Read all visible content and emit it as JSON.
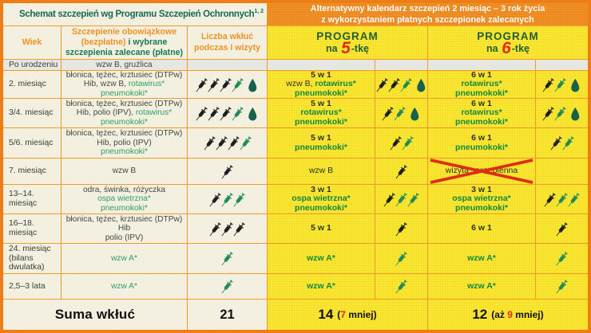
{
  "colors": {
    "outer_border": "#ee7d15",
    "grid_line": "#f09a28",
    "cream_bg": "#f4f1e2",
    "gray_band_bg": "#e7e7e1",
    "yellow_bg": "#f8ea30",
    "orange_band_bg": "#ef8c1f",
    "orange_header_text": "#ef9222",
    "green_accent_cream": "#2f9e63",
    "green_accent_yellow": "#0e8a3e",
    "title_green": "#176a50",
    "program_green": "#1d5f33",
    "red_accent": "#e02c12",
    "syringe_black": "#1d1d1d",
    "syringe_green": "#1f8a55",
    "drop_teal": "#16624d"
  },
  "header": {
    "title_left": "Schemat szczepień wg Programu Szczepień Ochronnych",
    "title_left_sup": "1, 2",
    "title_right_line1": "Alternatywny kalendarz szczepień 2 miesiąc – 3 rok życia",
    "title_right_line2": "z wykorzystaniem płatnych szczepionek zalecanych"
  },
  "columns": {
    "age": "Wiek",
    "mandatory_l1": "Szczepienie obowiązkowe",
    "mandatory_l2_orange": "(bezpłatne)",
    "mandatory_l2_green": " i wybrane",
    "mandatory_l3": "szczepienia zalecane (płatne)",
    "count_line1": "Liczba wkłuć",
    "count_line2": "podczas I wizyty",
    "program5": {
      "title": "PROGRAM",
      "prefix": "na",
      "digit": "5",
      "suffix": "-tkę"
    },
    "program6": {
      "title": "PROGRAM",
      "prefix": "na",
      "digit": "6",
      "suffix": "-tkę"
    }
  },
  "rows": [
    {
      "age": [
        "Po urodzeniu"
      ],
      "band": true,
      "vaccines": [
        [
          {
            "t": "wzw B, gruźlica"
          }
        ]
      ],
      "count": null,
      "p5": null,
      "p5_icons": null,
      "p6": null,
      "p6_icons": null
    },
    {
      "age": [
        "2. miesiąc"
      ],
      "vaccines": [
        [
          {
            "t": "błonica, tężec, krztusiec (DTPw)"
          }
        ],
        [
          {
            "t": "Hib, wzw B, "
          },
          {
            "t": "rotawirus*",
            "g": true
          }
        ],
        [
          {
            "t": "pneumokoki*",
            "g": true
          }
        ]
      ],
      "count": {
        "black": 3,
        "green": 1,
        "drop": true
      },
      "p5": [
        [
          {
            "t": "5 w 1",
            "b": true
          }
        ],
        [
          {
            "t": "wzw B, "
          },
          {
            "t": "rotawirus*",
            "g": true,
            "b": true
          }
        ],
        [
          {
            "t": "pneumokoki*",
            "g": true,
            "b": true
          }
        ]
      ],
      "p5_icons": {
        "black": 2,
        "green": 1,
        "drop": true
      },
      "p6": [
        [
          {
            "t": "6 w 1",
            "b": true
          }
        ],
        [
          {
            "t": "rotawirus*",
            "g": true,
            "b": true
          }
        ],
        [
          {
            "t": "pneumokoki*",
            "g": true,
            "b": true
          }
        ]
      ],
      "p6_icons": {
        "black": 1,
        "green": 1,
        "drop": true
      }
    },
    {
      "age": [
        "3/4. miesiąc"
      ],
      "vaccines": [
        [
          {
            "t": "błonica, tężec, krztusiec (DTPw)"
          }
        ],
        [
          {
            "t": "Hib, polio (IPV), "
          },
          {
            "t": "rotawirus*",
            "g": true
          }
        ],
        [
          {
            "t": "pneumokoki*",
            "g": true
          }
        ]
      ],
      "count": {
        "black": 3,
        "green": 1,
        "drop": true
      },
      "p5": [
        [
          {
            "t": "5 w 1",
            "b": true
          }
        ],
        [
          {
            "t": "rotawirus*",
            "g": true,
            "b": true
          }
        ],
        [
          {
            "t": "pneumokoki*",
            "g": true,
            "b": true
          }
        ]
      ],
      "p5_icons": {
        "black": 1,
        "green": 1,
        "drop": true
      },
      "p6": [
        [
          {
            "t": "6 w 1",
            "b": true
          }
        ],
        [
          {
            "t": "rotawirus*",
            "g": true,
            "b": true
          }
        ],
        [
          {
            "t": "pneumokoki*",
            "g": true,
            "b": true
          }
        ]
      ],
      "p6_icons": {
        "black": 1,
        "green": 1,
        "drop": true
      }
    },
    {
      "age": [
        "5/6. miesiąc"
      ],
      "vaccines": [
        [
          {
            "t": "błonica, tężec, krztusiec (DTPw)"
          }
        ],
        [
          {
            "t": "Hib, polio (IPV)"
          }
        ],
        [
          {
            "t": "pneumokoki*",
            "g": true
          }
        ]
      ],
      "count": {
        "black": 3,
        "green": 1,
        "drop": false
      },
      "p5": [
        [
          {
            "t": "5 w 1",
            "b": true
          }
        ],
        [
          {
            "t": "pneumokoki*",
            "g": true,
            "b": true
          }
        ]
      ],
      "p5_icons": {
        "black": 1,
        "green": 1,
        "drop": false
      },
      "p6": [
        [
          {
            "t": "6 w 1",
            "b": true
          }
        ],
        [
          {
            "t": "pneumokoki*",
            "g": true,
            "b": true
          }
        ]
      ],
      "p6_icons": {
        "black": 1,
        "green": 1,
        "drop": false
      }
    },
    {
      "age": [
        "7. miesiąc"
      ],
      "vaccines": [
        [
          {
            "t": "wzw B"
          }
        ]
      ],
      "count": {
        "black": 1,
        "green": 0,
        "drop": false
      },
      "p5": [
        [
          {
            "t": "wzw B"
          }
        ]
      ],
      "p5_icons": {
        "black": 1,
        "green": 0,
        "drop": false
      },
      "p6": [
        [
          {
            "t": "wizyta szczepienna"
          }
        ]
      ],
      "p6_crossed": true,
      "p6_icons": null
    },
    {
      "age": [
        "13–14.",
        "miesiąc"
      ],
      "vaccines": [
        [
          {
            "t": "odra, świnka, różyczka"
          }
        ],
        [
          {
            "t": "ospa wietrzna*",
            "g": true
          }
        ],
        [
          {
            "t": "pneumokoki*",
            "g": true
          }
        ]
      ],
      "count": {
        "black": 1,
        "green": 2,
        "drop": false
      },
      "p5": [
        [
          {
            "t": "3 w 1",
            "b": true
          }
        ],
        [
          {
            "t": "ospa wietrzna*",
            "g": true,
            "b": true
          }
        ],
        [
          {
            "t": "pneumokoki*",
            "g": true,
            "b": true
          }
        ]
      ],
      "p5_icons": {
        "black": 1,
        "green": 2,
        "drop": false
      },
      "p6": [
        [
          {
            "t": "3 w 1",
            "b": true
          }
        ],
        [
          {
            "t": "ospa wietrzna*",
            "g": true,
            "b": true
          }
        ],
        [
          {
            "t": "pneumokoki*",
            "g": true,
            "b": true
          }
        ]
      ],
      "p6_icons": {
        "black": 1,
        "green": 2,
        "drop": false
      }
    },
    {
      "age": [
        "16–18.",
        "miesiąc"
      ],
      "vaccines": [
        [
          {
            "t": "błonica, tężec, krztusiec (DTPw)"
          }
        ],
        [
          {
            "t": "Hib"
          }
        ],
        [
          {
            "t": "polio (IPV)"
          }
        ]
      ],
      "count": {
        "black": 3,
        "green": 0,
        "drop": false
      },
      "p5": [
        [
          {
            "t": "5 w 1",
            "b": true
          }
        ]
      ],
      "p5_icons": {
        "black": 1,
        "green": 0,
        "drop": false
      },
      "p6": [
        [
          {
            "t": "6 w 1",
            "b": true
          }
        ]
      ],
      "p6_icons": {
        "black": 1,
        "green": 0,
        "drop": false
      }
    },
    {
      "age": [
        "24. miesiąc",
        "(bilans",
        "dwulatka)"
      ],
      "vaccines": [
        [
          {
            "t": "wzw A*",
            "g": true
          }
        ]
      ],
      "count": {
        "black": 0,
        "green": 1,
        "drop": false
      },
      "p5": [
        [
          {
            "t": "wzw A*",
            "g": true,
            "b": true
          }
        ]
      ],
      "p5_icons": {
        "black": 0,
        "green": 1,
        "drop": false
      },
      "p6": [
        [
          {
            "t": "wzw A*",
            "g": true,
            "b": true
          }
        ]
      ],
      "p6_icons": {
        "black": 0,
        "green": 1,
        "drop": false
      }
    },
    {
      "age": [
        "2,5–3 lata"
      ],
      "vaccines": [
        [
          {
            "t": "wzw A*",
            "g": true
          }
        ]
      ],
      "count": {
        "black": 0,
        "green": 1,
        "drop": false
      },
      "p5": [
        [
          {
            "t": "wzw A*",
            "g": true,
            "b": true
          }
        ]
      ],
      "p5_icons": {
        "black": 0,
        "green": 1,
        "drop": false
      },
      "p6": [
        [
          {
            "t": "wzw A*",
            "g": true,
            "b": true
          }
        ]
      ],
      "p6_icons": {
        "black": 0,
        "green": 1,
        "drop": false
      }
    }
  ],
  "summary": {
    "label": "Suma wkłuć",
    "total_standard": "21",
    "p5": {
      "value": "14",
      "note_pre": "(",
      "note_red": "7",
      "note_post": " mniej)"
    },
    "p6": {
      "value": "12",
      "note_pre": "(aż ",
      "note_red": "9",
      "note_post": " mniej)"
    }
  }
}
